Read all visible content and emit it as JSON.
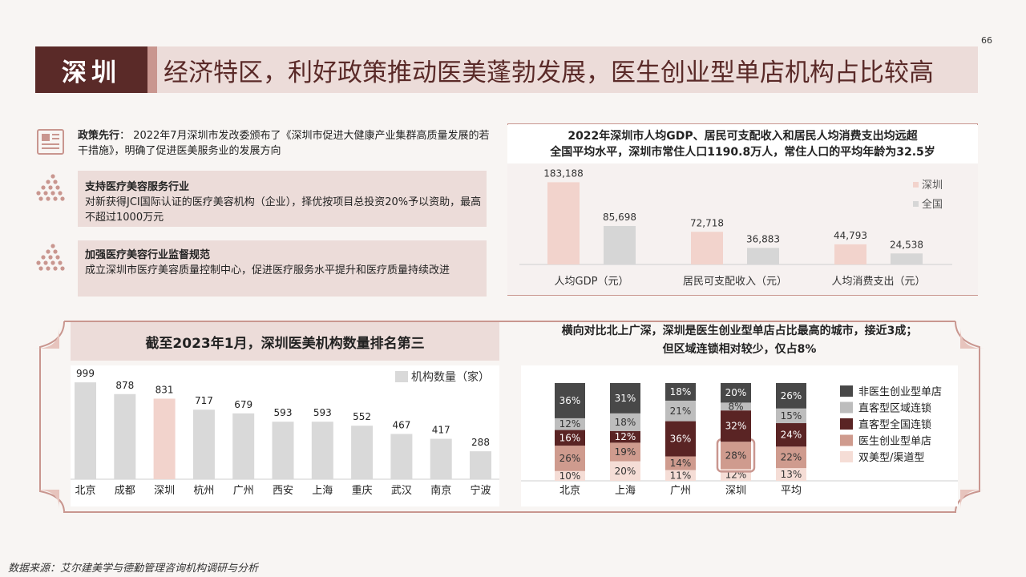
{
  "page_number": "66",
  "header": {
    "city": "深圳",
    "headline": "经济特区，利好政策推动医美蓬勃发展，医生创业型单店机构占比较高"
  },
  "policies": [
    {
      "title": "政策先行",
      "sep": "：",
      "text": "2022年7月深圳市发改委颁布了《深圳市促进大健康产业集群高质量发展的若干措施》，明确了促进医美服务业的发展方向"
    },
    {
      "title": "支持医疗美容服务行业",
      "text": "对新获得JCI国际认证的医疗美容机构（企业），择优按项目总投资20%予以资助，最高不超过1000万元"
    },
    {
      "title": "加强医疗美容行业监督规范",
      "text": "成立深圳市医疗美容质量控制中心，促进医疗服务水平提升和医疗质量持续改进"
    }
  ],
  "chart_data": [
    {
      "type": "bar",
      "title": "2022年深圳市人均GDP、居民可支配收入和居民人均消费支出均远超全国平均水平，深圳市常住人口1190.8万人，常住人口的平均年龄为32.5岁",
      "title_lines": [
        "2022年深圳市人均GDP、居民可支配收入和居民人均消费支出均远超",
        "全国平均水平，深圳市常住人口1190.8万人，常住人口的平均年龄为32.5岁"
      ],
      "categories": [
        "人均GDP（元）",
        "居民可支配收入（元）",
        "人均消费支出（元）"
      ],
      "series": [
        {
          "name": "深圳",
          "values": [
            183188,
            72718,
            44793
          ],
          "labels": [
            "183,188",
            "72,718",
            "44,793"
          ],
          "color": "#f2d3cc"
        },
        {
          "name": "全国",
          "values": [
            85698,
            36883,
            24538
          ],
          "labels": [
            "85,698",
            "36,883",
            "24,538"
          ],
          "color": "#d6d6d6"
        }
      ],
      "legend": "right",
      "ylim": [
        0,
        200000
      ]
    },
    {
      "type": "bar",
      "title": "截至2023年1月，深圳医美机构数量排名第三",
      "categories": [
        "北京",
        "成都",
        "深圳",
        "杭州",
        "广州",
        "西安",
        "上海",
        "重庆",
        "武汉",
        "南京",
        "宁波"
      ],
      "series": [
        {
          "name": "机构数量（家）",
          "values": [
            999,
            878,
            831,
            717,
            679,
            593,
            593,
            552,
            467,
            417,
            288
          ]
        }
      ],
      "colors": {
        "default": "#d9d9d9",
        "highlight": "#f2d3cc"
      },
      "highlight": "深圳",
      "legend": "top-right",
      "ylim": [
        0,
        1000
      ]
    },
    {
      "type": "bar",
      "stacked": true,
      "title": "横向对比北上广深，深圳是医生创业型单店占比最高的城市，接近3成；但区域连锁相对较少，仅占8%",
      "title_lines": [
        "横向对比北上广深，深圳是医生创业型单店占比最高的城市，接近3成；",
        "但区域连锁相对较少，仅占8%"
      ],
      "categories": [
        "北京",
        "上海",
        "广州",
        "深圳",
        "平均"
      ],
      "series": [
        {
          "name": "双美型/渠道型",
          "values": [
            10,
            20,
            11,
            12,
            13
          ],
          "color": "#f5ddd6",
          "text": "#333"
        },
        {
          "name": "医生创业型单店",
          "values": [
            26,
            19,
            14,
            28,
            22
          ],
          "color": "#cf9b8e",
          "text": "#333"
        },
        {
          "name": "直客型全国连锁",
          "values": [
            16,
            12,
            36,
            32,
            24
          ],
          "color": "#5a2424",
          "text": "#fff"
        },
        {
          "name": "直客型区域连锁",
          "values": [
            12,
            18,
            21,
            8,
            15
          ],
          "color": "#bdbdbd",
          "text": "#333"
        },
        {
          "name": "非医生创业型单店",
          "values": [
            36,
            31,
            18,
            20,
            26
          ],
          "color": "#484848",
          "text": "#fff"
        }
      ],
      "highlight": {
        "category": "深圳",
        "series": "医生创业型单店"
      },
      "legend": "right",
      "ylim": [
        0,
        100
      ]
    }
  ],
  "source": "数据来源：艾尔建美学与德勤管理咨询机构调研与分析"
}
